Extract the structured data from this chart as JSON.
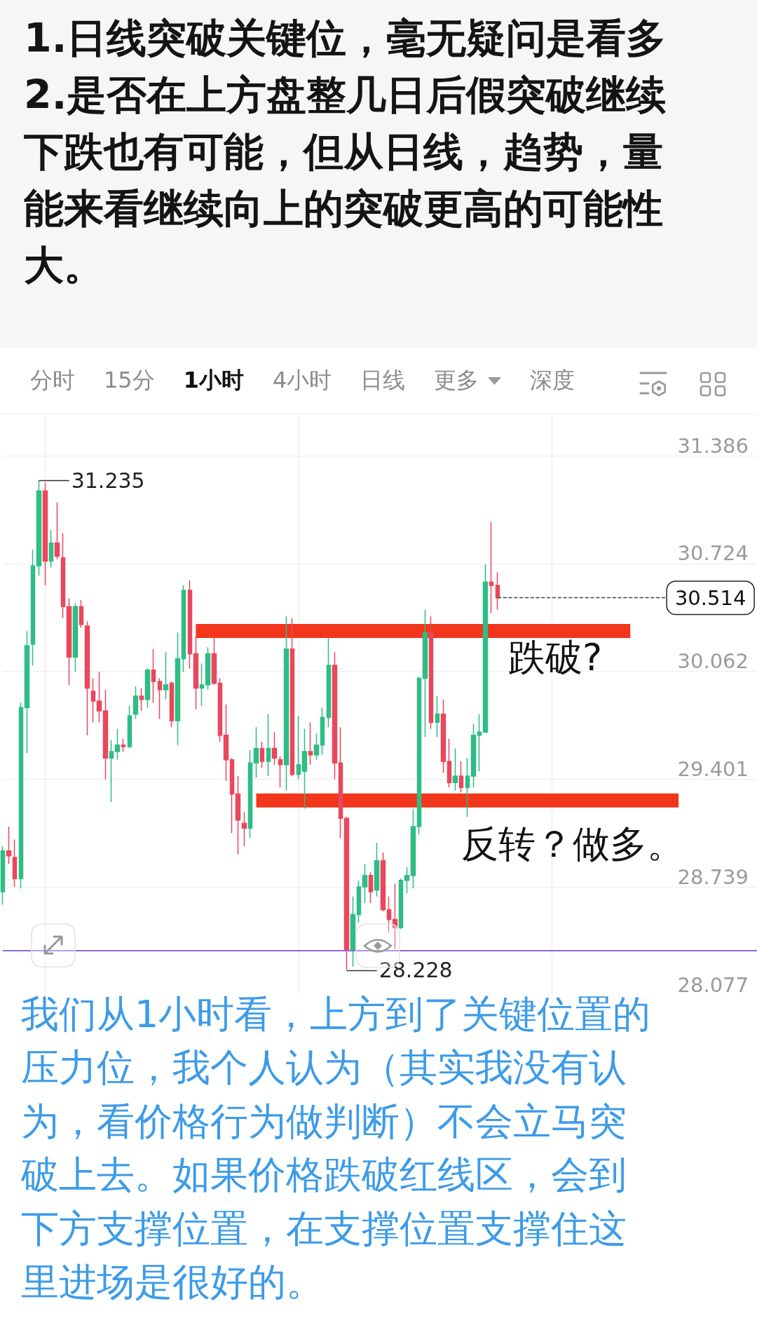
{
  "chart_data": {
    "type": "candlestick",
    "title": "1.日线突破关键位，毫无疑问是看多\n2.是否在上方盘整几日后假突破继续下跌也有可能，但从日线，趋势，量能来看继续向上的突破更高的可能性大。",
    "categories": [
      null,
      null,
      null,
      null,
      null,
      null,
      null,
      null,
      null,
      null,
      null,
      null,
      null,
      null,
      null,
      null,
      null,
      null,
      null,
      null,
      null,
      null,
      null,
      null,
      null,
      null,
      null,
      null,
      null,
      null,
      null,
      null,
      null,
      null,
      null,
      null,
      null,
      null,
      null,
      null,
      null,
      null,
      null,
      null,
      null,
      null,
      null,
      null,
      null,
      null,
      null,
      null,
      null,
      null,
      null,
      null,
      null,
      null,
      null,
      null,
      null,
      null,
      null,
      null,
      null,
      null,
      null,
      null,
      null,
      null,
      null,
      null,
      null,
      null,
      null,
      null,
      null,
      null,
      null,
      null,
      null,
      null,
      null,
      null,
      null,
      null,
      null,
      null,
      null,
      null,
      null,
      null,
      null,
      null,
      null,
      null,
      null,
      null,
      null,
      null,
      null,
      null,
      null,
      null,
      null,
      null,
      null,
      null,
      null,
      null,
      null,
      null,
      null,
      null,
      null,
      null,
      null,
      null,
      null,
      null,
      null,
      null,
      null,
      null,
      null,
      null
    ],
    "ohlc": [
      [
        28.71,
        28.99,
        28.63,
        28.96
      ],
      [
        28.96,
        29.11,
        28.88,
        28.93
      ],
      [
        28.92,
        29.03,
        28.74,
        28.79
      ],
      [
        28.79,
        29.87,
        28.73,
        29.84
      ],
      [
        29.84,
        30.31,
        29.56,
        30.22
      ],
      [
        30.23,
        30.81,
        30.1,
        30.71
      ],
      [
        30.71,
        31.235,
        30.65,
        31.17
      ],
      [
        31.17,
        31.22,
        30.59,
        30.74
      ],
      [
        30.74,
        30.93,
        30.7,
        30.85
      ],
      [
        30.85,
        31.1,
        30.75,
        30.77
      ],
      [
        30.76,
        30.91,
        30.39,
        30.46
      ],
      [
        30.46,
        30.51,
        29.98,
        30.15
      ],
      [
        30.15,
        30.48,
        30.06,
        30.46
      ],
      [
        30.46,
        30.5,
        30.33,
        30.35
      ],
      [
        30.34,
        30.37,
        29.67,
        29.96
      ],
      [
        29.94,
        30.02,
        29.75,
        29.88
      ],
      [
        29.88,
        30.06,
        29.75,
        29.82
      ],
      [
        29.82,
        29.95,
        29.4,
        29.53
      ],
      [
        29.53,
        29.64,
        29.26,
        29.57
      ],
      [
        29.57,
        29.71,
        29.52,
        29.61
      ],
      [
        29.61,
        29.65,
        29.57,
        29.6
      ],
      [
        29.6,
        29.85,
        29.59,
        29.79
      ],
      [
        29.8,
        29.97,
        29.77,
        29.91
      ],
      [
        29.91,
        29.96,
        29.82,
        29.89
      ],
      [
        29.89,
        30.08,
        29.84,
        30.07
      ],
      [
        30.07,
        30.2,
        29.87,
        30.0
      ],
      [
        30.0,
        30.02,
        29.77,
        29.95
      ],
      [
        29.95,
        30.18,
        29.89,
        29.98
      ],
      [
        29.99,
        30.0,
        29.72,
        29.76
      ],
      [
        29.76,
        30.3,
        29.61,
        30.14
      ],
      [
        30.14,
        30.59,
        30.06,
        30.56
      ],
      [
        30.56,
        30.62,
        30.08,
        30.17
      ],
      [
        30.17,
        30.28,
        29.83,
        29.96
      ],
      [
        29.96,
        30.11,
        29.85,
        29.98
      ],
      [
        29.98,
        30.21,
        29.95,
        30.17
      ],
      [
        30.17,
        30.27,
        29.98,
        29.99
      ],
      [
        29.99,
        30.02,
        29.63,
        29.67
      ],
      [
        29.67,
        29.86,
        29.39,
        29.52
      ],
      [
        29.52,
        29.53,
        29.07,
        29.31
      ],
      [
        29.31,
        29.42,
        28.94,
        29.15
      ],
      [
        29.13,
        29.2,
        28.99,
        29.1
      ],
      [
        29.1,
        29.58,
        29.04,
        29.5
      ],
      [
        29.5,
        29.72,
        29.41,
        29.59
      ],
      [
        29.59,
        29.63,
        29.47,
        29.51
      ],
      [
        29.51,
        29.8,
        29.42,
        29.59
      ],
      [
        29.59,
        29.69,
        29.49,
        29.53
      ],
      [
        29.52,
        29.54,
        29.35,
        29.49
      ],
      [
        29.49,
        30.4,
        29.33,
        30.2
      ],
      [
        30.2,
        30.39,
        29.42,
        29.43
      ],
      [
        29.43,
        29.79,
        29.4,
        29.49
      ],
      [
        29.45,
        29.71,
        29.22,
        29.57
      ],
      [
        29.57,
        29.75,
        29.49,
        29.55
      ],
      [
        29.55,
        29.68,
        29.52,
        29.61
      ],
      [
        29.61,
        29.84,
        29.55,
        29.78
      ],
      [
        29.78,
        30.27,
        29.72,
        30.1
      ],
      [
        30.1,
        30.18,
        29.4,
        29.5
      ],
      [
        29.5,
        29.72,
        29.04,
        29.16
      ],
      [
        29.16,
        29.17,
        28.228,
        28.35
      ],
      [
        28.35,
        28.68,
        28.25,
        28.57
      ],
      [
        28.57,
        28.78,
        28.52,
        28.74
      ],
      [
        28.74,
        28.88,
        28.64,
        28.81
      ],
      [
        28.81,
        28.83,
        28.64,
        28.71
      ],
      [
        28.72,
        29.01,
        28.68,
        28.9
      ],
      [
        28.9,
        28.95,
        28.59,
        28.6
      ],
      [
        28.6,
        28.68,
        28.46,
        28.54
      ],
      [
        28.54,
        28.76,
        28.36,
        28.49
      ],
      [
        28.49,
        28.79,
        28.48,
        28.78
      ],
      [
        28.78,
        28.86,
        28.7,
        28.81
      ],
      [
        28.81,
        29.22,
        28.73,
        29.11
      ],
      [
        29.11,
        30.03,
        29.06,
        30.02
      ],
      [
        30.02,
        30.44,
        29.66,
        30.3
      ],
      [
        30.3,
        30.4,
        29.71,
        29.75
      ],
      [
        29.75,
        29.91,
        29.66,
        29.8
      ],
      [
        29.8,
        29.89,
        29.44,
        29.51
      ],
      [
        29.51,
        29.65,
        29.35,
        29.38
      ],
      [
        29.38,
        29.59,
        29.33,
        29.42
      ],
      [
        29.42,
        29.51,
        29.32,
        29.35
      ],
      [
        29.35,
        29.53,
        29.17,
        29.42
      ],
      [
        29.42,
        29.74,
        29.35,
        29.67
      ],
      [
        29.67,
        29.8,
        29.45,
        29.69
      ],
      [
        29.69,
        30.72,
        29.69,
        30.61
      ],
      [
        30.61,
        30.98,
        30.42,
        30.59
      ],
      [
        30.59,
        30.67,
        30.44,
        30.514
      ],
      null,
      null,
      null,
      null,
      null,
      null,
      null,
      null,
      null,
      null,
      null,
      null,
      null,
      null,
      null,
      null,
      null,
      null,
      null,
      null,
      null,
      null,
      null,
      null,
      null,
      null,
      null,
      null,
      null,
      null,
      null,
      null,
      null,
      null,
      null,
      null,
      null,
      null,
      null,
      null,
      null,
      null,
      null
    ],
    "colors": [
      "#2ebd85",
      "#e9475d",
      "#e9475d",
      "#2ebd85",
      "#2ebd85",
      "#2ebd85",
      "#2ebd85",
      "#e9475d",
      "#2ebd85",
      "#e9475d",
      "#e9475d",
      "#e9475d",
      "#2ebd85",
      "#e9475d",
      "#e9475d",
      "#e9475d",
      "#e9475d",
      "#e9475d",
      "#2ebd85",
      "#2ebd85",
      "#e9475d",
      "#2ebd85",
      "#2ebd85",
      "#e9475d",
      "#2ebd85",
      "#e9475d",
      "#e9475d",
      "#2ebd85",
      "#e9475d",
      "#2ebd85",
      "#2ebd85",
      "#e9475d",
      "#e9475d",
      "#2ebd85",
      "#2ebd85",
      "#e9475d",
      "#e9475d",
      "#e9475d",
      "#e9475d",
      "#e9475d",
      "#e9475d",
      "#2ebd85",
      "#2ebd85",
      "#e9475d",
      "#2ebd85",
      "#e9475d",
      "#e9475d",
      "#2ebd85",
      "#e9475d",
      "#2ebd85",
      "#2ebd85",
      "#e9475d",
      "#2ebd85",
      "#2ebd85",
      "#2ebd85",
      "#e9475d",
      "#e9475d",
      "#e9475d",
      "#2ebd85",
      "#2ebd85",
      "#2ebd85",
      "#e9475d",
      "#2ebd85",
      "#e9475d",
      "#e9475d",
      "#e9475d",
      "#2ebd85",
      "#2ebd85",
      "#2ebd85",
      "#2ebd85",
      "#2ebd85",
      "#e9475d",
      "#2ebd85",
      "#e9475d",
      "#e9475d",
      "#2ebd85",
      "#e9475d",
      "#2ebd85",
      "#2ebd85",
      "#2ebd85",
      "#2ebd85",
      "#e9475d",
      "#e9475d",
      null,
      null,
      null,
      null,
      null,
      null,
      null,
      null,
      null,
      null,
      null,
      null,
      null,
      null,
      null,
      null,
      null,
      null,
      null,
      null,
      null,
      null,
      null,
      null,
      null,
      null,
      null,
      null,
      null,
      null,
      null,
      null,
      null,
      null,
      null,
      null,
      null,
      null,
      null,
      null,
      null,
      null,
      null
    ],
    "series": [
      {
        "type": "line",
        "name": "跌破?",
        "color": "#f2361c",
        "values": [
          null,
          null,
          null,
          null,
          null,
          null,
          null,
          null,
          null,
          null,
          null,
          null,
          null,
          null,
          null,
          null,
          null,
          null,
          null,
          null,
          null,
          null,
          null,
          null,
          null,
          null,
          null,
          null,
          null,
          null,
          null,
          null,
          30.31,
          30.31,
          30.31,
          30.31,
          30.31,
          30.31,
          30.31,
          30.31,
          30.31,
          30.31,
          30.31,
          30.31,
          30.31,
          30.31,
          30.31,
          30.31,
          30.31,
          30.31,
          30.31,
          30.31,
          30.31,
          30.31,
          30.31,
          30.31,
          30.31,
          30.31,
          30.31,
          30.31,
          30.31,
          30.31,
          30.31,
          30.31,
          30.31,
          30.31,
          30.31,
          30.31,
          30.31,
          30.31,
          30.31,
          30.31,
          30.31,
          30.31,
          30.31,
          30.31,
          30.31,
          30.31,
          30.31,
          30.31,
          null,
          30.31,
          30.31,
          30.31,
          30.31,
          30.31,
          30.31,
          30.31,
          30.31,
          30.31,
          30.31,
          30.31,
          30.31,
          30.31,
          30.31,
          30.31,
          30.31,
          30.31,
          30.31,
          30.31,
          30.31,
          30.31,
          30.31,
          30.31,
          30.31,
          null,
          null,
          null,
          null,
          null,
          null,
          null,
          null,
          null,
          null,
          null,
          null,
          null,
          null,
          null,
          null,
          null,
          null,
          null,
          null,
          null
        ]
      },
      {
        "type": "line",
        "name": "反转？做多。",
        "color": "#f2361c",
        "values": [
          null,
          null,
          null,
          null,
          null,
          null,
          null,
          null,
          null,
          null,
          null,
          null,
          null,
          null,
          null,
          null,
          null,
          null,
          null,
          null,
          null,
          null,
          null,
          null,
          null,
          null,
          null,
          null,
          null,
          null,
          null,
          null,
          null,
          null,
          null,
          null,
          null,
          null,
          null,
          null,
          null,
          null,
          29.27,
          29.27,
          29.27,
          29.27,
          29.27,
          29.27,
          29.27,
          29.27,
          29.27,
          29.27,
          29.27,
          29.27,
          29.27,
          29.27,
          null,
          29.27,
          29.27,
          29.27,
          29.27,
          29.27,
          29.27,
          29.27,
          29.27,
          29.27,
          29.27,
          29.27,
          29.27,
          null,
          29.27,
          29.27,
          29.27,
          29.27,
          29.27,
          29.27,
          29.27,
          29.27,
          29.27,
          29.27,
          29.27,
          29.27,
          29.27,
          29.27,
          29.27,
          29.27,
          29.27,
          29.27,
          29.27,
          29.27,
          29.27,
          29.27,
          29.27,
          29.27,
          29.27,
          29.27,
          29.27,
          29.27,
          29.27,
          29.27,
          29.27,
          29.27,
          29.27,
          29.27,
          29.27,
          29.27,
          29.27,
          29.27,
          29.27,
          29.27,
          29.27,
          29.27,
          29.27,
          null,
          null,
          null,
          null,
          null,
          null,
          null,
          null,
          null,
          null,
          null,
          null,
          null
        ]
      }
    ],
    "ylim": [
      28.077,
      31.64
    ],
    "yticks": [
      28.077,
      28.739,
      29.401,
      30.062,
      30.724,
      31.386
    ],
    "tick_labels": "y",
    "grid": true,
    "ref_lines": [
      {
        "axis": "y",
        "value": 30.514,
        "label": "30.514",
        "line_style": "dashed",
        "color": "#444444"
      },
      {
        "axis": "y",
        "value": 28.35,
        "color": "#9466d6"
      }
    ],
    "annotations": [
      "分时",
      "15分",
      "1小时",
      "4小时",
      "日线",
      "更多",
      "深度",
      "31.235",
      "28.228",
      "我们从1小时看，上方到了关键位置的压力位，我个人认为（其实我没有认为，看价格行为做判断）不会立马突破上去。如果价格跌破红线区，会到下方支撑位置，在支撑位置支撑住这里进场是很好的。"
    ]
  }
}
